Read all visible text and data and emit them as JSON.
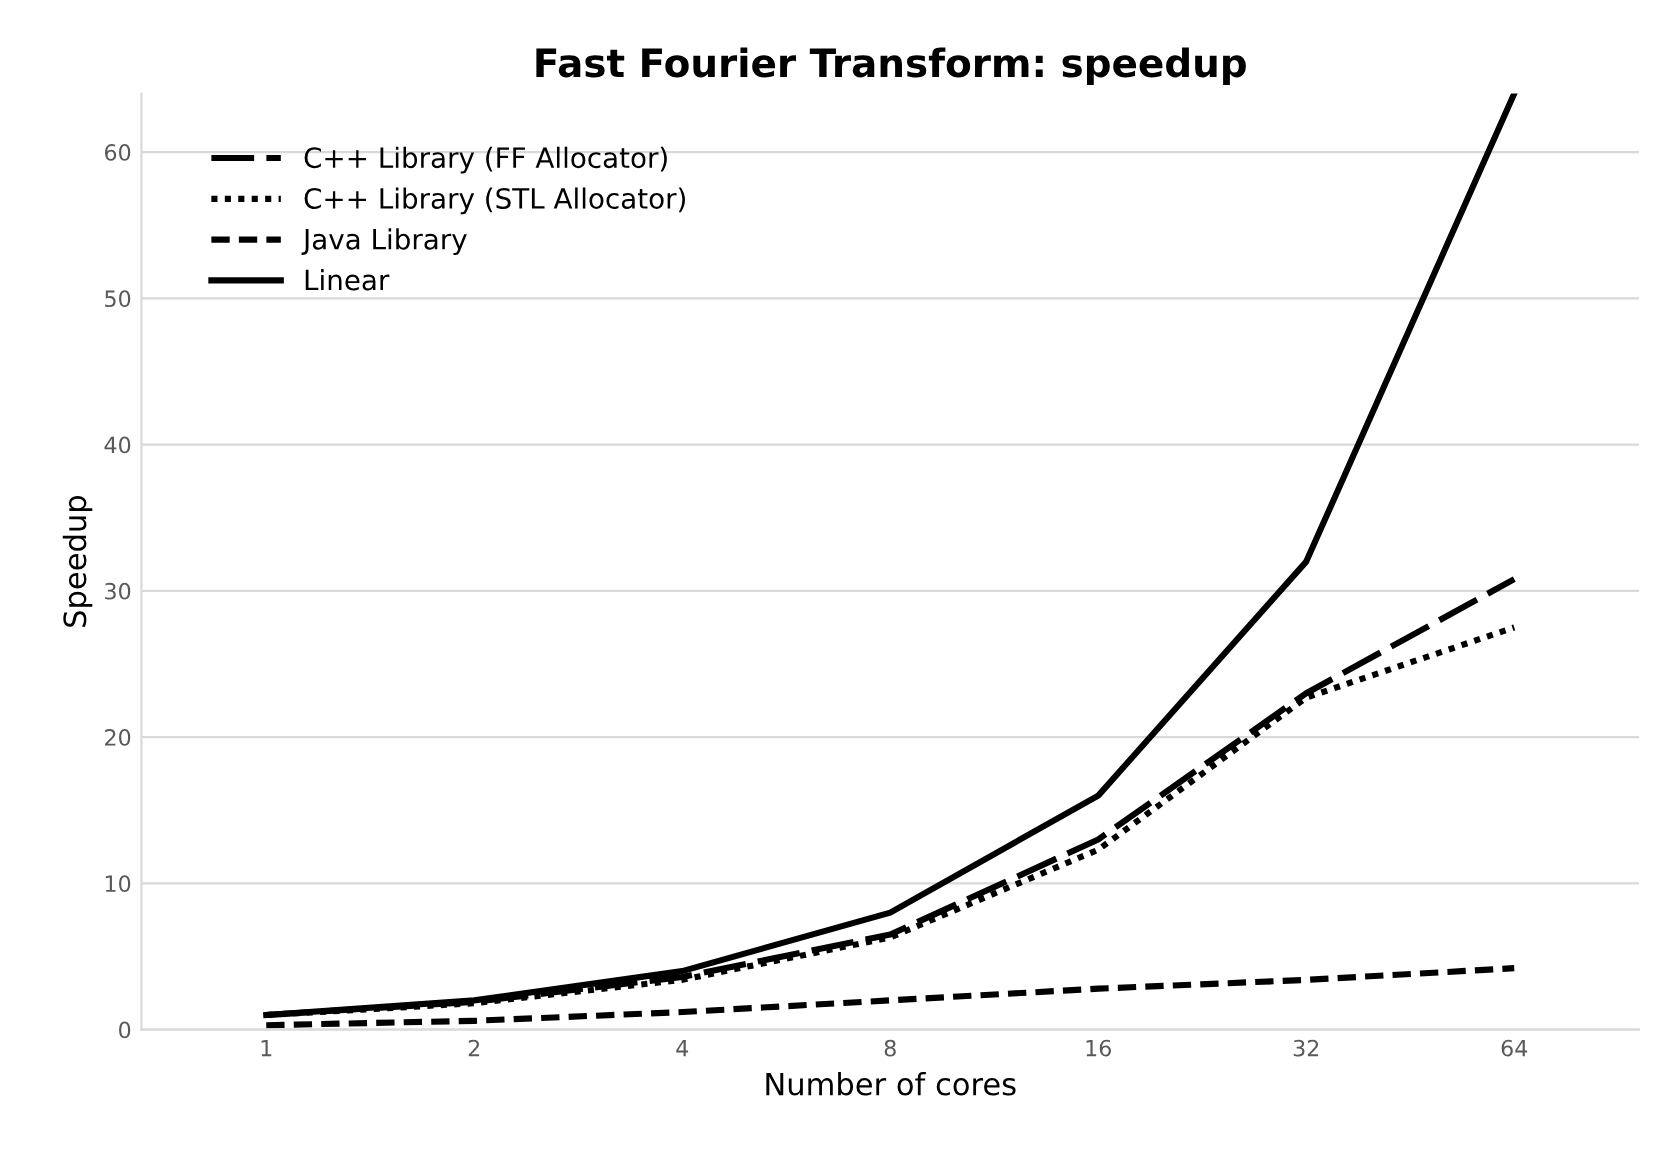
{
  "chart_data": {
    "type": "line",
    "title": "Fast Fourier Transform: speedup",
    "xlabel": "Number of cores",
    "ylabel": "Speedup",
    "categories": [
      "1",
      "2",
      "4",
      "8",
      "16",
      "32",
      "64"
    ],
    "series": [
      {
        "name": "C++ Library (FF Allocator)",
        "color": "#000000",
        "line_style": "dashed",
        "values": [
          1,
          1.9,
          3.6,
          6.5,
          13,
          23,
          30.8
        ]
      },
      {
        "name": "C++ Library (STL Allocator)",
        "color": "#000000",
        "line_style": "dotted",
        "values": [
          1,
          1.8,
          3.4,
          6.3,
          12.3,
          22.7,
          27.5
        ]
      },
      {
        "name": "Java Library",
        "color": "#000000",
        "line_style": "dashed",
        "values": [
          0.3,
          0.6,
          1.2,
          2,
          2.8,
          3.4,
          4.2
        ]
      },
      {
        "name": "Linear",
        "color": "#000000",
        "line_style": "solid",
        "values": [
          1,
          2,
          4,
          8,
          16,
          32,
          64
        ]
      }
    ],
    "ylim": [
      0,
      64
    ],
    "yticks": [
      0,
      10,
      20,
      30,
      40,
      50,
      60
    ],
    "grid": "y",
    "legend": "top left",
    "marker": "none"
  }
}
